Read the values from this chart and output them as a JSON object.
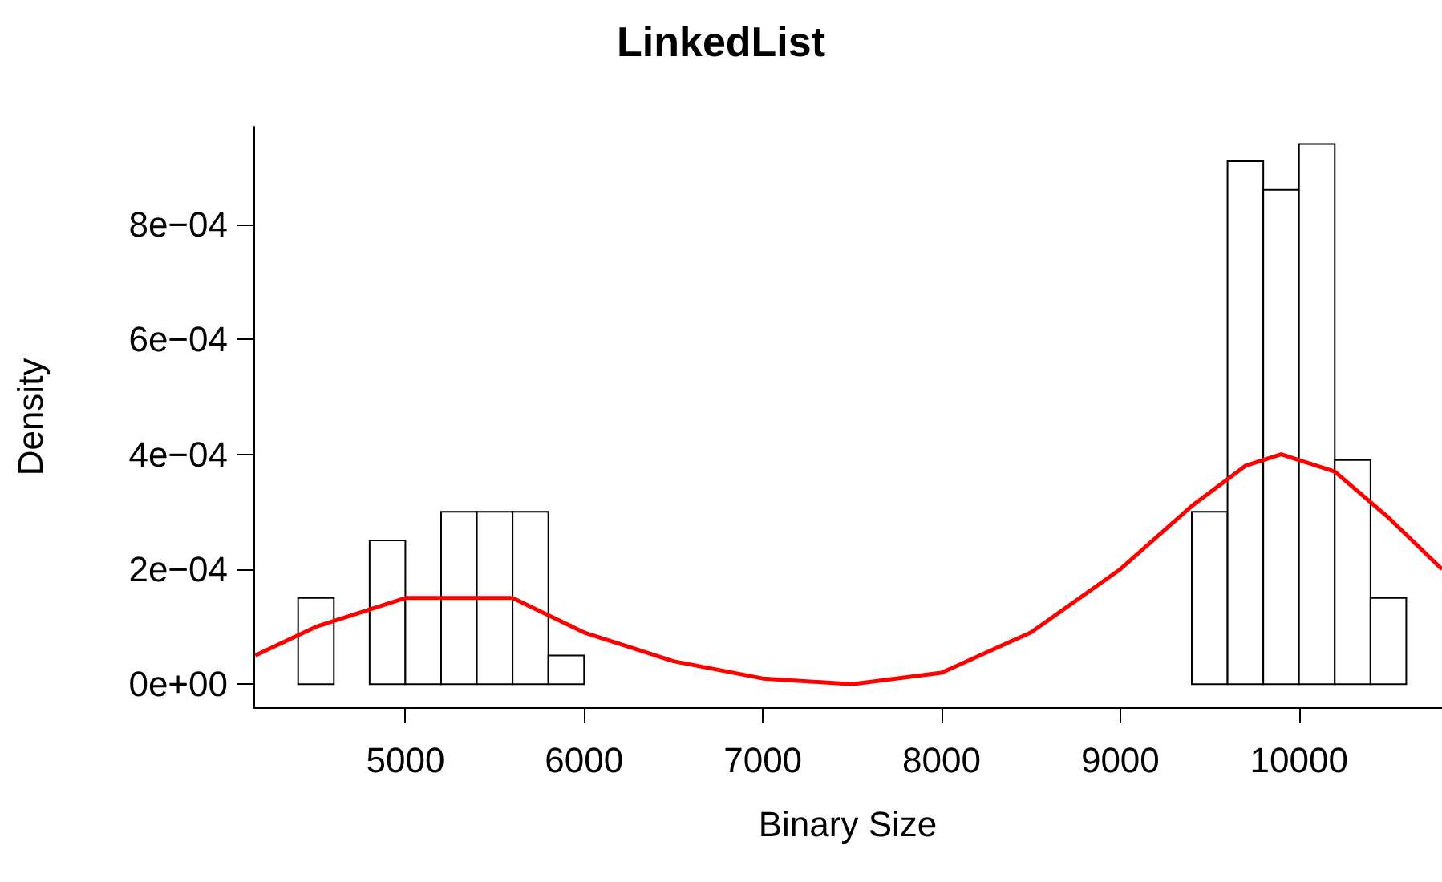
{
  "chart_data": {
    "type": "histogram",
    "title": "LinkedList",
    "xlabel": "Binary Size",
    "ylabel": "Density",
    "bins": [
      4400,
      4600,
      4800,
      5000,
      5200,
      5400,
      5600,
      5800,
      6000,
      6200,
      6400,
      6600,
      6800,
      7000,
      7200,
      7400,
      7600,
      7800,
      8000,
      8200,
      8400,
      8600,
      8800,
      9000,
      9200,
      9400,
      9600,
      9800,
      10000,
      10200,
      10400,
      10600
    ],
    "values": [
      0.00015,
      0,
      0.00025,
      0.00015,
      0.0003,
      0.0003,
      0.0003,
      5e-05,
      0,
      0,
      0,
      0,
      0,
      0,
      0,
      0,
      0,
      0,
      0,
      0,
      0,
      0,
      0,
      0,
      0,
      0.0003,
      0.00091,
      0.00086,
      0.00094,
      0.00039,
      0.00015
    ],
    "color": "#ffffff",
    "series": [
      {
        "type": "line",
        "color": "#ff0000",
        "x": [
          4160,
          4500,
          5000,
          5300,
          5600,
          6000,
          6500,
          7000,
          7500,
          8000,
          8500,
          9000,
          9400,
          9700,
          9900,
          10200,
          10500,
          10800
        ],
        "values": [
          5e-05,
          0.0001,
          0.00015,
          0.00015,
          0.00015,
          9e-05,
          4e-05,
          1e-05,
          0,
          2e-05,
          9e-05,
          0.0002,
          0.00031,
          0.00038,
          0.0004,
          0.00037,
          0.00029,
          0.0002
        ]
      }
    ],
    "xlim": [
      4150,
      10800
    ],
    "ylim": [
      -4e-05,
      0.00097
    ],
    "xticks": [
      5000,
      6000,
      7000,
      8000,
      9000,
      10000
    ],
    "yticks": [
      {
        "value": 0,
        "label": "0e+00"
      },
      {
        "value": 0.0002,
        "label": "2e−04"
      },
      {
        "value": 0.0004,
        "label": "4e−04"
      },
      {
        "value": 0.0006,
        "label": "6e−04"
      },
      {
        "value": 0.0008,
        "label": "8e−04"
      }
    ],
    "grid": false
  }
}
